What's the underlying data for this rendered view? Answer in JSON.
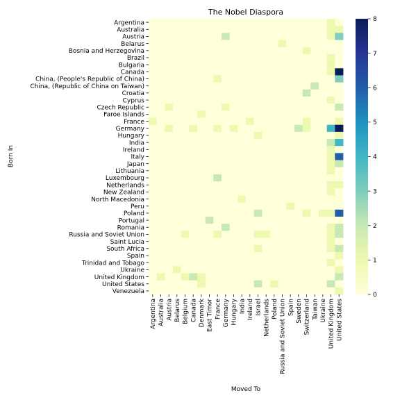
{
  "chart_data": {
    "type": "heatmap",
    "title": "The Nobel Diaspora",
    "xlabel": "Moved To",
    "ylabel": "Born In",
    "colormap": "YlGnBu",
    "colors": [
      "#ffffd9",
      "#edf8b1",
      "#c7e9b4",
      "#7fcdbb",
      "#41b6c4",
      "#1d91c0",
      "#225ea8",
      "#253494",
      "#081d58"
    ],
    "vmin": 0,
    "vmax": 8,
    "colorbar_ticks": [
      "0",
      "1",
      "2",
      "3",
      "4",
      "5",
      "6",
      "7",
      "8"
    ],
    "rows": [
      "Argentina",
      "Australia",
      "Austria",
      "Belarus",
      "Bosnia and Herzegovina",
      "Brazil",
      "Bulgaria",
      "Canada",
      "China, (People's Republic of China)",
      "China, (Republic of China on Taiwan)",
      "Croatia",
      "Cyprus",
      "Czech Republic",
      "Faroe Islands",
      "France",
      "Germany",
      "Hungary",
      "India",
      "Ireland",
      "Italy",
      "Japan",
      "Lithuania",
      "Luxembourg",
      "Netherlands",
      "New Zealand",
      "North Macedonia",
      "Peru",
      "Poland",
      "Portugal",
      "Romania",
      "Russia and Soviet Union",
      "Saint Lucia",
      "South Africa",
      "Spain",
      "Trinidad and Tobago",
      "Ukraine",
      "United Kingdom",
      "United States",
      "Venezuela"
    ],
    "columns": [
      "Argentina",
      "Australia",
      "Austria",
      "Belarus",
      "Belgium",
      "Canada",
      "Denmark",
      "East Timor",
      "France",
      "Germany",
      "Hungary",
      "India",
      "Ireland",
      "Israel",
      "Netherlands",
      "Poland",
      "Russia and Soviet Union",
      "Spain",
      "Sweden",
      "Switzerland",
      "Taiwan",
      "Ukraine",
      "United Kingdom",
      "United States"
    ],
    "values": [
      [
        0,
        0,
        0,
        0,
        0,
        0,
        0,
        0,
        0,
        0,
        0,
        0,
        0,
        0,
        0,
        0,
        0,
        0,
        0,
        0,
        0,
        0,
        1,
        0
      ],
      [
        0,
        0,
        0,
        0,
        0,
        0,
        0,
        0,
        0,
        0,
        0,
        0,
        0,
        0,
        0,
        0,
        0,
        0,
        0,
        0,
        0,
        0,
        1,
        1
      ],
      [
        0,
        0,
        0,
        0,
        0,
        0,
        0,
        0,
        0,
        2,
        0,
        0,
        0,
        0,
        0,
        0,
        0,
        0,
        0,
        0,
        0,
        0,
        1,
        3
      ],
      [
        0,
        0,
        0,
        0,
        0,
        0,
        0,
        0,
        0,
        0,
        0,
        0,
        0,
        0,
        0,
        0,
        1,
        0,
        0,
        0,
        0,
        0,
        0,
        0
      ],
      [
        0,
        0,
        0,
        0,
        0,
        0,
        0,
        0,
        0,
        0,
        0,
        0,
        0,
        0,
        0,
        0,
        0,
        0,
        0,
        1,
        0,
        0,
        0,
        0
      ],
      [
        0,
        0,
        0,
        0,
        0,
        0,
        0,
        0,
        0,
        0,
        0,
        0,
        0,
        0,
        0,
        0,
        0,
        0,
        0,
        0,
        0,
        0,
        1,
        0
      ],
      [
        0,
        0,
        0,
        0,
        0,
        0,
        0,
        0,
        0,
        0,
        0,
        0,
        0,
        0,
        0,
        0,
        0,
        0,
        0,
        0,
        0,
        0,
        1,
        0
      ],
      [
        0,
        0,
        0,
        0,
        0,
        0,
        0,
        0,
        0,
        0,
        0,
        0,
        0,
        0,
        0,
        0,
        0,
        0,
        0,
        0,
        0,
        0,
        1,
        8
      ],
      [
        0,
        0,
        0,
        0,
        0,
        0,
        0,
        0,
        1,
        0,
        0,
        0,
        0,
        0,
        0,
        0,
        0,
        0,
        0,
        0,
        0,
        0,
        0,
        3
      ],
      [
        0,
        0,
        0,
        0,
        0,
        0,
        0,
        0,
        0,
        0,
        0,
        0,
        0,
        0,
        0,
        0,
        0,
        0,
        0,
        0,
        2,
        0,
        0,
        0
      ],
      [
        0,
        0,
        0,
        0,
        0,
        0,
        0,
        0,
        0,
        0,
        0,
        0,
        0,
        0,
        0,
        0,
        0,
        0,
        0,
        2,
        0,
        0,
        0,
        0
      ],
      [
        0,
        0,
        0,
        0,
        0,
        0,
        0,
        0,
        0,
        0,
        0,
        0,
        0,
        0,
        0,
        0,
        0,
        0,
        0,
        0,
        0,
        0,
        1,
        0
      ],
      [
        0,
        0,
        1,
        0,
        0,
        0,
        0,
        0,
        0,
        1,
        0,
        0,
        0,
        0,
        0,
        0,
        0,
        0,
        0,
        0,
        0,
        0,
        0,
        2
      ],
      [
        0,
        0,
        0,
        0,
        0,
        0,
        1,
        0,
        0,
        0,
        0,
        0,
        0,
        0,
        0,
        0,
        0,
        0,
        0,
        0,
        0,
        0,
        0,
        0
      ],
      [
        1,
        0,
        0,
        0,
        0,
        0,
        0,
        0,
        0,
        0,
        0,
        0,
        1,
        0,
        0,
        0,
        0,
        0,
        0,
        1,
        0,
        0,
        0,
        1
      ],
      [
        0,
        0,
        1,
        0,
        0,
        1,
        0,
        0,
        1,
        0,
        1,
        0,
        0,
        0,
        0,
        0,
        0,
        0,
        2,
        1,
        0,
        0,
        4,
        8
      ],
      [
        0,
        0,
        0,
        0,
        0,
        0,
        0,
        0,
        0,
        0,
        0,
        0,
        0,
        1,
        0,
        0,
        0,
        0,
        0,
        0,
        0,
        0,
        0,
        1
      ],
      [
        0,
        0,
        0,
        0,
        0,
        0,
        0,
        0,
        0,
        0,
        0,
        0,
        0,
        0,
        0,
        0,
        0,
        0,
        0,
        0,
        0,
        0,
        2,
        4
      ],
      [
        0,
        0,
        0,
        0,
        0,
        0,
        0,
        0,
        0,
        0,
        0,
        0,
        0,
        0,
        0,
        0,
        0,
        0,
        0,
        0,
        0,
        0,
        1,
        0
      ],
      [
        0,
        0,
        0,
        0,
        0,
        0,
        0,
        0,
        0,
        0,
        0,
        0,
        0,
        0,
        0,
        0,
        0,
        0,
        0,
        0,
        0,
        0,
        1,
        6
      ],
      [
        0,
        0,
        0,
        0,
        0,
        0,
        0,
        0,
        0,
        0,
        0,
        0,
        0,
        0,
        0,
        0,
        0,
        0,
        0,
        0,
        0,
        0,
        1,
        2
      ],
      [
        0,
        0,
        0,
        0,
        0,
        0,
        0,
        0,
        0,
        0,
        0,
        0,
        0,
        0,
        0,
        0,
        0,
        0,
        0,
        0,
        0,
        0,
        1,
        0
      ],
      [
        0,
        0,
        0,
        0,
        0,
        0,
        0,
        0,
        2,
        0,
        0,
        0,
        0,
        0,
        0,
        0,
        0,
        0,
        0,
        0,
        0,
        0,
        0,
        0
      ],
      [
        0,
        0,
        0,
        0,
        0,
        0,
        0,
        0,
        0,
        0,
        0,
        0,
        0,
        0,
        0,
        0,
        0,
        0,
        0,
        0,
        0,
        0,
        1,
        1
      ],
      [
        0,
        0,
        0,
        0,
        0,
        0,
        0,
        0,
        0,
        0,
        0,
        0,
        0,
        0,
        0,
        0,
        0,
        0,
        0,
        0,
        0,
        0,
        1,
        0
      ],
      [
        0,
        0,
        0,
        0,
        0,
        0,
        0,
        0,
        0,
        0,
        0,
        1,
        0,
        0,
        0,
        0,
        0,
        0,
        0,
        0,
        0,
        0,
        0,
        0
      ],
      [
        0,
        0,
        0,
        0,
        0,
        0,
        0,
        0,
        0,
        0,
        0,
        0,
        0,
        0,
        0,
        0,
        0,
        1,
        0,
        0,
        0,
        0,
        0,
        0
      ],
      [
        0,
        0,
        0,
        0,
        0,
        0,
        0,
        0,
        0,
        0,
        0,
        0,
        0,
        2,
        0,
        0,
        0,
        0,
        0,
        1,
        0,
        1,
        1,
        6
      ],
      [
        0,
        0,
        0,
        0,
        0,
        0,
        0,
        2,
        0,
        0,
        0,
        0,
        0,
        0,
        0,
        0,
        0,
        0,
        0,
        0,
        0,
        0,
        0,
        0
      ],
      [
        0,
        0,
        0,
        0,
        0,
        0,
        0,
        0,
        0,
        2,
        0,
        0,
        0,
        0,
        0,
        0,
        0,
        0,
        0,
        0,
        0,
        0,
        1,
        2
      ],
      [
        0,
        0,
        0,
        0,
        1,
        0,
        0,
        0,
        1,
        0,
        0,
        0,
        0,
        1,
        1,
        0,
        0,
        0,
        0,
        0,
        0,
        0,
        1,
        2
      ],
      [
        0,
        0,
        0,
        0,
        0,
        0,
        0,
        0,
        0,
        0,
        0,
        0,
        0,
        0,
        0,
        0,
        0,
        0,
        0,
        0,
        0,
        0,
        1,
        0
      ],
      [
        0,
        0,
        0,
        0,
        0,
        0,
        0,
        0,
        0,
        0,
        0,
        0,
        0,
        1,
        0,
        0,
        0,
        0,
        0,
        0,
        0,
        0,
        1,
        2
      ],
      [
        0,
        0,
        0,
        0,
        0,
        0,
        0,
        0,
        0,
        0,
        0,
        0,
        0,
        0,
        0,
        0,
        0,
        0,
        0,
        0,
        0,
        0,
        0,
        1
      ],
      [
        0,
        0,
        0,
        0,
        0,
        0,
        0,
        0,
        0,
        0,
        0,
        0,
        0,
        0,
        0,
        0,
        0,
        0,
        0,
        0,
        0,
        0,
        1,
        0
      ],
      [
        0,
        0,
        0,
        1,
        0,
        0,
        0,
        0,
        0,
        0,
        0,
        0,
        0,
        0,
        0,
        0,
        0,
        0,
        0,
        0,
        0,
        0,
        0,
        1
      ],
      [
        0,
        1,
        0,
        0,
        1,
        2,
        1,
        0,
        0,
        0,
        0,
        0,
        0,
        0,
        0,
        0,
        0,
        0,
        0,
        0,
        0,
        0,
        0,
        2
      ],
      [
        0,
        0,
        0,
        0,
        0,
        0,
        1,
        0,
        0,
        0,
        0,
        0,
        0,
        2,
        0,
        1,
        0,
        0,
        0,
        0,
        0,
        0,
        2,
        0
      ],
      [
        0,
        0,
        0,
        0,
        0,
        0,
        0,
        0,
        0,
        0,
        0,
        0,
        0,
        0,
        0,
        0,
        0,
        0,
        0,
        0,
        0,
        0,
        0,
        1
      ]
    ]
  }
}
